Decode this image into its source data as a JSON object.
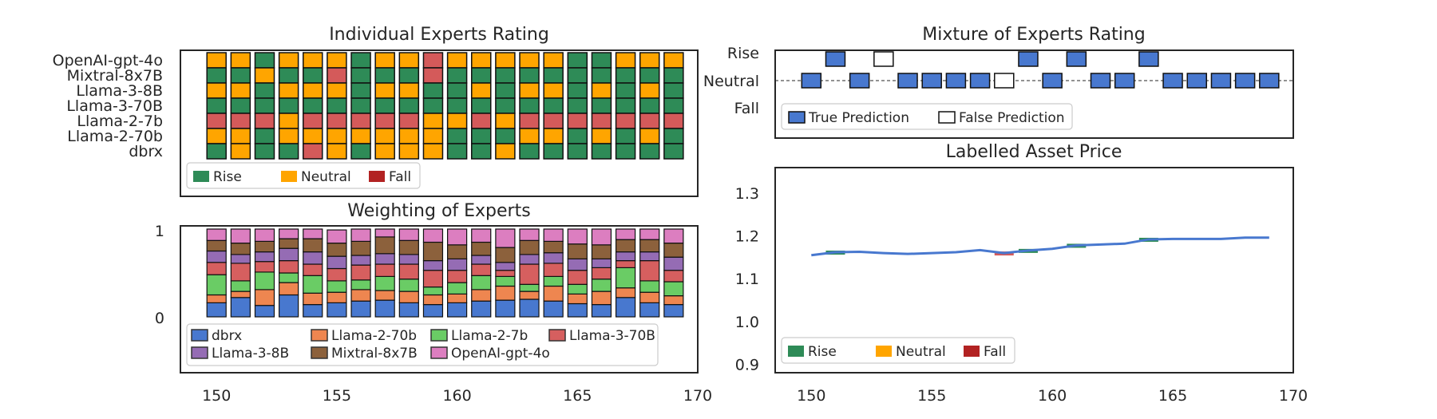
{
  "colors": {
    "Rise": "#2e8b57",
    "Neutral": "#ffa500",
    "Fall": "#d45a5a",
    "Fall_legend": "#b22222",
    "dbrx": "#4878cf",
    "Llama-2-70b": "#ee8650",
    "Llama-2-7b": "#6acc65",
    "Llama-3-70B": "#d65f5f",
    "Llama-3-8B": "#956cb4",
    "Mixtral-8x7B": "#8c613c",
    "OpenAI-gpt-4o": "#dc7ec0",
    "true_pred": "#4878cf",
    "price_line": "#4878cf"
  },
  "chart_data": [
    {
      "type": "heatmap",
      "title": "Individual Experts Rating",
      "rows": [
        "OpenAI-gpt-4o",
        "Mixtral-8x7B",
        "Llama-3-8B",
        "Llama-3-70B",
        "Llama-2-7b",
        "Llama-2-70b",
        "dbrx"
      ],
      "x": [
        150,
        151,
        152,
        153,
        154,
        155,
        156,
        157,
        158,
        159,
        160,
        161,
        162,
        163,
        164,
        165,
        166,
        167,
        168,
        169
      ],
      "xlim": [
        148.5,
        170
      ],
      "xticks": [
        150,
        155,
        160,
        165,
        170
      ],
      "values": [
        [
          "Neutral",
          "Neutral",
          "Rise",
          "Neutral",
          "Neutral",
          "Neutral",
          "Rise",
          "Neutral",
          "Neutral",
          "Fall",
          "Neutral",
          "Neutral",
          "Neutral",
          "Neutral",
          "Neutral",
          "Rise",
          "Rise",
          "Neutral",
          "Neutral",
          "Neutral"
        ],
        [
          "Rise",
          "Rise",
          "Neutral",
          "Rise",
          "Rise",
          "Fall",
          "Rise",
          "Rise",
          "Rise",
          "Fall",
          "Rise",
          "Rise",
          "Rise",
          "Rise",
          "Rise",
          "Rise",
          "Rise",
          "Rise",
          "Rise",
          "Rise"
        ],
        [
          "Neutral",
          "Neutral",
          "Rise",
          "Neutral",
          "Neutral",
          "Neutral",
          "Rise",
          "Neutral",
          "Neutral",
          "Rise",
          "Rise",
          "Neutral",
          "Rise",
          "Neutral",
          "Neutral",
          "Rise",
          "Neutral",
          "Rise",
          "Neutral",
          "Rise"
        ],
        [
          "Rise",
          "Rise",
          "Rise",
          "Rise",
          "Rise",
          "Rise",
          "Rise",
          "Rise",
          "Rise",
          "Rise",
          "Rise",
          "Rise",
          "Rise",
          "Rise",
          "Rise",
          "Rise",
          "Rise",
          "Rise",
          "Rise",
          "Rise"
        ],
        [
          "Fall",
          "Fall",
          "Fall",
          "Neutral",
          "Fall",
          "Fall",
          "Fall",
          "Fall",
          "Fall",
          "Neutral",
          "Neutral",
          "Fall",
          "Neutral",
          "Fall",
          "Fall",
          "Fall",
          "Fall",
          "Fall",
          "Fall",
          "Fall"
        ],
        [
          "Neutral",
          "Neutral",
          "Rise",
          "Neutral",
          "Neutral",
          "Neutral",
          "Neutral",
          "Neutral",
          "Neutral",
          "Neutral",
          "Rise",
          "Rise",
          "Rise",
          "Neutral",
          "Neutral",
          "Rise",
          "Neutral",
          "Rise",
          "Neutral",
          "Rise"
        ],
        [
          "Rise",
          "Neutral",
          "Rise",
          "Rise",
          "Fall",
          "Neutral",
          "Rise",
          "Neutral",
          "Neutral",
          "Neutral",
          "Rise",
          "Rise",
          "Neutral",
          "Rise",
          "Rise",
          "Rise",
          "Rise",
          "Rise",
          "Rise",
          "Rise"
        ]
      ],
      "legend": [
        "Rise",
        "Neutral",
        "Fall"
      ],
      "legend_position": "lower-left"
    },
    {
      "type": "bar",
      "stacked": true,
      "title": "Weighting of Experts",
      "x": [
        150,
        151,
        152,
        153,
        154,
        155,
        156,
        157,
        158,
        159,
        160,
        161,
        162,
        163,
        164,
        165,
        166,
        167,
        168,
        169
      ],
      "xlim": [
        148.5,
        170
      ],
      "xticks": [
        150,
        155,
        160,
        165,
        170
      ],
      "ylim": [
        0,
        1
      ],
      "yticks": [
        "0",
        "1"
      ],
      "series": [
        {
          "name": "dbrx",
          "values": [
            0.16,
            0.22,
            0.13,
            0.25,
            0.14,
            0.16,
            0.18,
            0.19,
            0.16,
            0.14,
            0.16,
            0.18,
            0.19,
            0.2,
            0.18,
            0.15,
            0.14,
            0.22,
            0.16,
            0.14
          ]
        },
        {
          "name": "Llama-2-70b",
          "values": [
            0.09,
            0.07,
            0.18,
            0.14,
            0.13,
            0.12,
            0.13,
            0.11,
            0.13,
            0.11,
            0.1,
            0.13,
            0.16,
            0.09,
            0.17,
            0.11,
            0.15,
            0.11,
            0.12,
            0.1
          ]
        },
        {
          "name": "Llama-2-7b",
          "values": [
            0.23,
            0.12,
            0.2,
            0.11,
            0.2,
            0.13,
            0.11,
            0.16,
            0.14,
            0.09,
            0.13,
            0.16,
            0.11,
            0.08,
            0.11,
            0.11,
            0.14,
            0.23,
            0.13,
            0.16
          ]
        },
        {
          "name": "Llama-3-70B",
          "values": [
            0.14,
            0.2,
            0.12,
            0.14,
            0.13,
            0.14,
            0.17,
            0.14,
            0.17,
            0.19,
            0.14,
            0.13,
            0.07,
            0.23,
            0.15,
            0.16,
            0.13,
            0.08,
            0.23,
            0.13
          ]
        },
        {
          "name": "Llama-3-8B",
          "values": [
            0.13,
            0.1,
            0.11,
            0.14,
            0.14,
            0.14,
            0.11,
            0.12,
            0.11,
            0.11,
            0.13,
            0.1,
            0.09,
            0.11,
            0.12,
            0.13,
            0.1,
            0.1,
            0.1,
            0.15
          ]
        },
        {
          "name": "Mixtral-8x7B",
          "values": [
            0.12,
            0.13,
            0.12,
            0.11,
            0.15,
            0.15,
            0.16,
            0.19,
            0.16,
            0.21,
            0.16,
            0.15,
            0.17,
            0.16,
            0.13,
            0.17,
            0.16,
            0.14,
            0.14,
            0.16
          ]
        },
        {
          "name": "OpenAI-gpt-4o",
          "values": [
            0.13,
            0.16,
            0.14,
            0.11,
            0.11,
            0.15,
            0.14,
            0.09,
            0.13,
            0.15,
            0.18,
            0.15,
            0.21,
            0.13,
            0.14,
            0.17,
            0.18,
            0.12,
            0.12,
            0.16
          ]
        }
      ],
      "legend_position": "lower-left"
    },
    {
      "type": "scatter",
      "title": "Mixture of Experts Rating",
      "yticks": [
        "Rise",
        "Neutral",
        "Fall"
      ],
      "xlim": [
        148.5,
        170
      ],
      "x": [
        150,
        151,
        152,
        153,
        154,
        155,
        156,
        157,
        158,
        159,
        160,
        161,
        162,
        163,
        164,
        165,
        166,
        167,
        168,
        169
      ],
      "prediction": [
        "Neutral",
        "Rise",
        "Neutral",
        "Rise",
        "Neutral",
        "Neutral",
        "Neutral",
        "Neutral",
        "Neutral",
        "Rise",
        "Neutral",
        "Rise",
        "Neutral",
        "Neutral",
        "Rise",
        "Neutral",
        "Neutral",
        "Neutral",
        "Neutral",
        "Neutral"
      ],
      "correct": [
        true,
        true,
        true,
        false,
        true,
        true,
        true,
        true,
        false,
        true,
        true,
        true,
        true,
        true,
        true,
        true,
        true,
        true,
        true,
        true
      ],
      "legend": [
        "True Prediction",
        "False Prediction"
      ],
      "legend_position": "lower-left"
    },
    {
      "type": "line",
      "title": "Labelled Asset Price",
      "xlim": [
        148.5,
        170
      ],
      "xticks": [
        150,
        155,
        160,
        165,
        170
      ],
      "ylim": [
        0.88,
        1.36
      ],
      "yticks": [
        0.9,
        1.0,
        1.1,
        1.2,
        1.3
      ],
      "x": [
        150,
        151,
        152,
        153,
        154,
        155,
        156,
        157,
        158,
        159,
        160,
        161,
        162,
        163,
        164,
        165,
        166,
        167,
        168,
        169
      ],
      "y": [
        1.155,
        1.162,
        1.163,
        1.16,
        1.158,
        1.16,
        1.162,
        1.167,
        1.16,
        1.166,
        1.17,
        1.178,
        1.18,
        1.182,
        1.192,
        1.193,
        1.193,
        1.193,
        1.196,
        1.196
      ],
      "labels": [
        "Neutral",
        "Rise",
        "Neutral",
        "Neutral",
        "Neutral",
        "Neutral",
        "Neutral",
        "Neutral",
        "Fall",
        "Rise",
        "Neutral",
        "Rise",
        "Neutral",
        "Neutral",
        "Rise",
        "Neutral",
        "Neutral",
        "Neutral",
        "Neutral",
        "Neutral"
      ],
      "legend": [
        "Rise",
        "Neutral",
        "Fall"
      ],
      "legend_position": "lower-left"
    }
  ]
}
